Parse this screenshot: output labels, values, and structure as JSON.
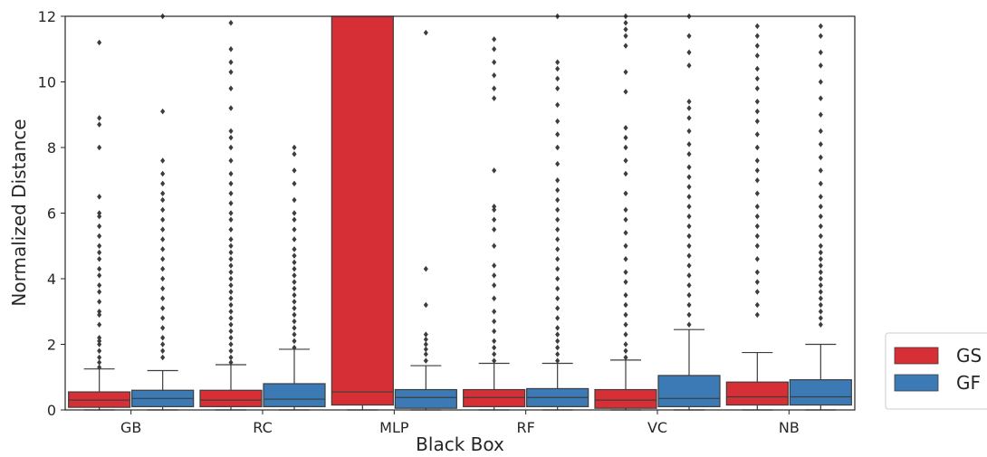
{
  "chart_data": {
    "type": "box",
    "xlabel": "Black Box",
    "ylabel": "Normalized Distance",
    "ylim": [
      0,
      12
    ],
    "yticks": [
      0,
      2,
      4,
      6,
      8,
      10,
      12
    ],
    "categories": [
      "GB",
      "RC",
      "MLP",
      "RF",
      "VC",
      "NB"
    ],
    "grid": false,
    "legend_position": "lower-right-outside",
    "series": [
      {
        "name": "GS",
        "color": "#d62f35",
        "boxes": [
          {
            "q1": 0.08,
            "median": 0.3,
            "q3": 0.55,
            "whisker_low": 0,
            "whisker_high": 1.25,
            "outliers": [
              1.3,
              1.45,
              1.6,
              1.8,
              2.0,
              2.1,
              2.2,
              2.6,
              2.9,
              3.0,
              3.3,
              3.6,
              3.8,
              4.1,
              4.3,
              4.6,
              4.8,
              5.0,
              5.3,
              5.6,
              5.9,
              6.0,
              6.5,
              8.0,
              8.7,
              8.9,
              11.2
            ]
          },
          {
            "q1": 0.1,
            "median": 0.3,
            "q3": 0.6,
            "whisker_low": 0,
            "whisker_high": 1.38,
            "outliers": [
              1.45,
              1.6,
              1.8,
              2.0,
              2.2,
              2.4,
              2.6,
              2.8,
              3.0,
              3.2,
              3.4,
              3.6,
              3.8,
              4.0,
              4.2,
              4.4,
              4.6,
              4.8,
              5.0,
              5.2,
              5.5,
              5.8,
              6.0,
              6.3,
              6.6,
              6.9,
              7.2,
              7.6,
              8.0,
              8.3,
              8.5,
              9.2,
              9.8,
              10.3,
              10.6,
              11.0,
              11.8
            ]
          },
          {
            "q1": 0.15,
            "median": 0.55,
            "q3": 12,
            "whisker_low": 0,
            "whisker_high": 12,
            "outliers": []
          },
          {
            "q1": 0.1,
            "median": 0.38,
            "q3": 0.62,
            "whisker_low": 0,
            "whisker_high": 1.42,
            "outliers": [
              1.5,
              1.7,
              1.9,
              2.1,
              2.4,
              2.7,
              3.0,
              3.4,
              3.8,
              4.1,
              4.4,
              5.0,
              5.5,
              5.8,
              6.1,
              6.2,
              7.3,
              9.5,
              9.8,
              10.2,
              10.6,
              11.0,
              11.3
            ]
          },
          {
            "q1": 0.05,
            "median": 0.3,
            "q3": 0.62,
            "whisker_low": 0,
            "whisker_high": 1.52,
            "outliers": [
              1.6,
              1.8,
              2.0,
              2.3,
              2.6,
              2.9,
              3.2,
              3.5,
              3.9,
              4.2,
              4.6,
              5.0,
              5.4,
              5.8,
              6.1,
              6.6,
              7.2,
              7.6,
              8.0,
              8.3,
              8.6,
              9.7,
              10.3,
              11.1,
              11.4,
              11.6,
              11.8,
              12.0
            ]
          },
          {
            "q1": 0.15,
            "median": 0.4,
            "q3": 0.85,
            "whisker_low": 0,
            "whisker_high": 1.75,
            "outliers": [
              2.9,
              3.2,
              3.6,
              3.9,
              4.2,
              4.6,
              5.0,
              5.3,
              5.6,
              5.9,
              6.2,
              6.6,
              7.0,
              7.3,
              7.6,
              8.0,
              8.4,
              8.8,
              9.1,
              9.4,
              9.8,
              10.1,
              10.4,
              10.8,
              11.1,
              11.4,
              11.7
            ]
          }
        ]
      },
      {
        "name": "GF",
        "color": "#3c7ab5",
        "boxes": [
          {
            "q1": 0.1,
            "median": 0.35,
            "q3": 0.6,
            "whisker_low": 0,
            "whisker_high": 1.2,
            "outliers": [
              1.6,
              1.8,
              2.0,
              2.2,
              2.5,
              2.8,
              3.1,
              3.4,
              3.7,
              4.0,
              4.3,
              4.6,
              4.9,
              5.2,
              5.5,
              5.8,
              6.1,
              6.4,
              6.6,
              6.9,
              7.2,
              7.6,
              9.1,
              12.0
            ]
          },
          {
            "q1": 0.1,
            "median": 0.33,
            "q3": 0.8,
            "whisker_low": 0,
            "whisker_high": 1.85,
            "outliers": [
              1.9,
              2.1,
              2.3,
              2.5,
              2.7,
              2.9,
              3.1,
              3.3,
              3.5,
              3.7,
              3.9,
              4.1,
              4.3,
              4.5,
              4.7,
              4.9,
              5.2,
              5.5,
              5.8,
              6.0,
              6.4,
              6.9,
              7.3,
              7.8,
              8.0
            ]
          },
          {
            "q1": 0.05,
            "median": 0.38,
            "q3": 0.62,
            "whisker_low": 0,
            "whisker_high": 1.35,
            "outliers": [
              1.5,
              1.7,
              1.85,
              2.0,
              2.15,
              2.3,
              3.2,
              4.3,
              11.5
            ]
          },
          {
            "q1": 0.1,
            "median": 0.38,
            "q3": 0.65,
            "whisker_low": 0,
            "whisker_high": 1.42,
            "outliers": [
              1.5,
              1.7,
              1.9,
              2.1,
              2.3,
              2.5,
              2.8,
              3.1,
              3.4,
              3.7,
              4.0,
              4.3,
              4.6,
              4.9,
              5.2,
              5.5,
              5.8,
              6.1,
              6.4,
              6.7,
              7.0,
              7.5,
              8.0,
              8.4,
              8.8,
              9.3,
              9.8,
              10.1,
              10.4,
              10.6,
              12.0
            ]
          },
          {
            "q1": 0.1,
            "median": 0.35,
            "q3": 1.05,
            "whisker_low": 0,
            "whisker_high": 2.45,
            "outliers": [
              2.6,
              2.9,
              3.2,
              3.5,
              3.8,
              4.1,
              4.4,
              4.7,
              5.0,
              5.3,
              5.6,
              5.9,
              6.2,
              6.5,
              6.8,
              7.1,
              7.4,
              7.8,
              8.1,
              8.5,
              8.9,
              9.2,
              9.4,
              10.5,
              10.9,
              11.4,
              12.0
            ]
          },
          {
            "q1": 0.15,
            "median": 0.4,
            "q3": 0.92,
            "whisker_low": 0,
            "whisker_high": 2.0,
            "outliers": [
              2.6,
              2.8,
              3.0,
              3.2,
              3.4,
              3.6,
              3.8,
              4.0,
              4.2,
              4.4,
              4.6,
              4.8,
              5.0,
              5.3,
              5.6,
              5.9,
              6.2,
              6.5,
              6.9,
              7.3,
              7.7,
              8.1,
              8.5,
              9.0,
              9.5,
              10.0,
              10.5,
              10.9,
              11.4,
              11.7
            ]
          }
        ]
      }
    ]
  }
}
